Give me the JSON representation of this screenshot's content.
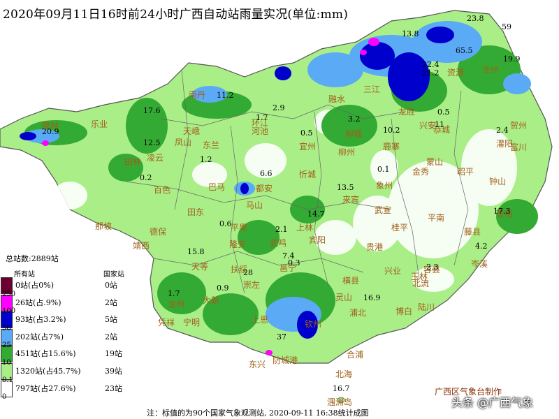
{
  "title": "2020年09月11日16时前24小时广西自动站雨量实况(单位:mm)",
  "legend": {
    "total": "总站数:2889站",
    "col_all": "所有站",
    "col_nat": "国家站",
    "thresholds": [
      "250",
      "100",
      "50",
      "25",
      "10",
      "0.1",
      "0"
    ],
    "bins": [
      {
        "color": "#6b0030",
        "all": "0站(占0%)",
        "nat": "0站"
      },
      {
        "color": "#ff00ff",
        "all": "26站(占.9%)",
        "nat": "2站"
      },
      {
        "color": "#0000cc",
        "all": "93站(占3.2%)",
        "nat": "5站"
      },
      {
        "color": "#5aaaf5",
        "all": "202站(占7%)",
        "nat": "2站"
      },
      {
        "color": "#33aa33",
        "all": "451站(占15.6%)",
        "nat": "19站"
      },
      {
        "color": "#aaee88",
        "all": "1320站(占45.7%)",
        "nat": "39站"
      },
      {
        "color": "#ffffff",
        "all": "797站(占27.6%)",
        "nat": "23站"
      }
    ]
  },
  "places": [
    "隆林",
    "乐业",
    "天峨",
    "南丹",
    "环江",
    "融水",
    "三江",
    "龙胜",
    "资源",
    "全州",
    "兴安",
    "灌阳",
    "恭城",
    "富川",
    "钟山",
    "贺州",
    "昭平",
    "蒙山",
    "金秀",
    "鹿寨",
    "柳城",
    "柳州",
    "象州",
    "武宣",
    "来宾",
    "忻城",
    "宜州",
    "河池",
    "东兰",
    "凤山",
    "田林",
    "凌云",
    "巴马",
    "都安",
    "马山",
    "上林",
    "宾阳",
    "横县",
    "贵港",
    "桂平",
    "平南",
    "藤县",
    "岑溪",
    "苍梧",
    "容县",
    "北流",
    "玉林",
    "陆川",
    "博白",
    "兴业",
    "浦北",
    "灵山",
    "钦州",
    "北海",
    "合浦",
    "防城港",
    "东兴",
    "上思",
    "宁明",
    "凭祥",
    "龙州",
    "大新",
    "天等",
    "德保",
    "那坡",
    "靖西",
    "百色",
    "田东",
    "平果",
    "隆安",
    "武鸣",
    "崇左",
    "扶绥",
    "邕宁",
    "涠洲岛"
  ],
  "values": [
    "23.8",
    "59",
    "13.8",
    "65.5",
    "22.4",
    "19.9",
    "21.2",
    "11.2",
    "17.6",
    "20.9",
    "12.5",
    "1.7",
    "2.9",
    "0.5",
    "3.2",
    "10.2",
    "0.5",
    "2.4",
    "11",
    "6.6",
    "13.5",
    "0.1",
    "17.3",
    "14.7",
    "2.1",
    "15.8",
    "4.2",
    "2.3",
    "28",
    "7.4",
    "0.3",
    "0.9",
    "1.7",
    "16.9",
    "37",
    "1.2",
    "0.2",
    "0.6",
    "16.7"
  ],
  "footnote": "注：标值的为90个国家气象观测站, 2020-09-11 16:38统计成图",
  "credit": "广西区气象台制作",
  "watermark": "头条 @广西气象"
}
